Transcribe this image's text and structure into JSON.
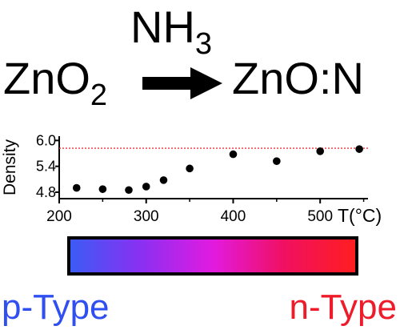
{
  "reaction": {
    "reagent_main": "NH",
    "reagent_sub": "3",
    "reactant_main": "ZnO",
    "reactant_sub": "2",
    "product": "ZnO:N"
  },
  "chart_data": {
    "type": "scatter",
    "ylabel": "Density",
    "xunit_label": "T(°C)",
    "x_ticks": [
      200,
      300,
      400,
      500
    ],
    "y_ticks": [
      4.8,
      5.4,
      6.0
    ],
    "xlim": [
      200,
      555
    ],
    "ylim": [
      4.65,
      6.1
    ],
    "reference_line": {
      "y": 5.82,
      "color": "#e8343a",
      "style": "dotted"
    },
    "points": [
      {
        "x": 220,
        "y": 4.9
      },
      {
        "x": 250,
        "y": 4.87
      },
      {
        "x": 280,
        "y": 4.85
      },
      {
        "x": 300,
        "y": 4.93
      },
      {
        "x": 320,
        "y": 5.08
      },
      {
        "x": 350,
        "y": 5.35
      },
      {
        "x": 400,
        "y": 5.68
      },
      {
        "x": 450,
        "y": 5.52
      },
      {
        "x": 500,
        "y": 5.75
      },
      {
        "x": 545,
        "y": 5.8
      }
    ],
    "grid": false
  },
  "scale_bar": {
    "gradient_colors": [
      "#3a5cf5",
      "#8a30f2",
      "#e21ae0",
      "#f01060",
      "#ff1e1e"
    ],
    "left_label": "p-Type",
    "right_label": "n-Type",
    "left_color": "#2f4ff0",
    "right_color": "#ee1c2a"
  }
}
